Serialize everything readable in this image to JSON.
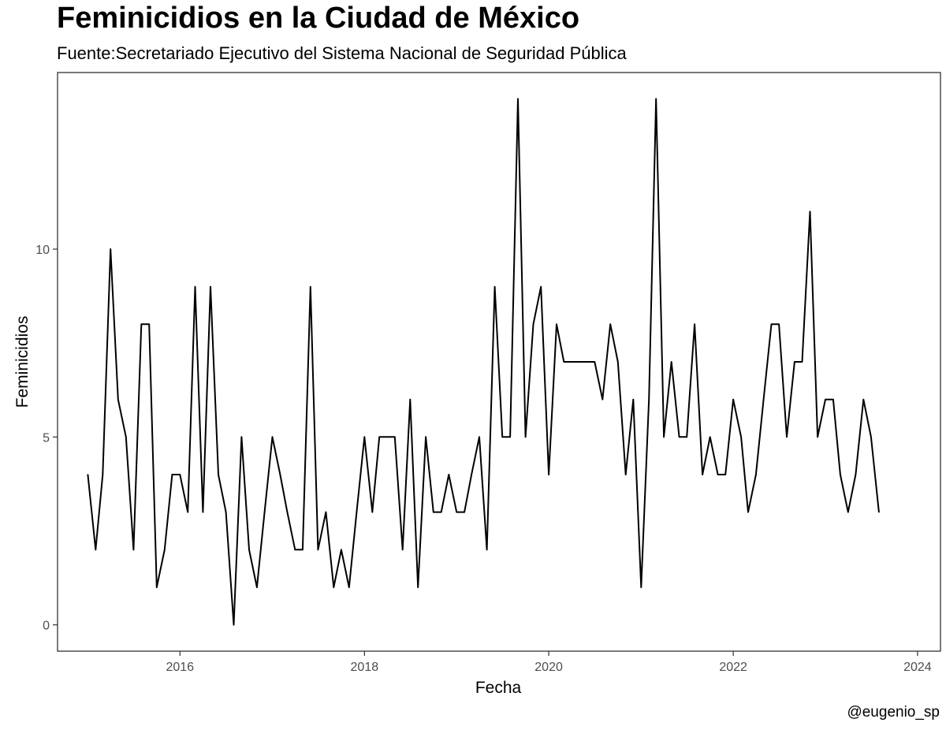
{
  "chart_data": {
    "type": "line",
    "title": "Feminicidios en la Ciudad de México",
    "subtitle": "Fuente:Secretariado Ejecutivo del Sistema Nacional de Seguridad Pública",
    "caption": "@eugenio_sp",
    "xlabel": "Fecha",
    "ylabel": "Feminicidios",
    "x_axis_type": "date",
    "xlim": [
      "2014-09-03",
      "2024-04-01"
    ],
    "ylim": [
      -0.7,
      14.7
    ],
    "x_ticks": [
      {
        "date": "2016-01-01",
        "label": "2016"
      },
      {
        "date": "2018-01-01",
        "label": "2018"
      },
      {
        "date": "2020-01-01",
        "label": "2020"
      },
      {
        "date": "2022-01-01",
        "label": "2022"
      },
      {
        "date": "2024-01-01",
        "label": "2024"
      }
    ],
    "y_ticks": [
      {
        "value": 0,
        "label": "0"
      },
      {
        "value": 5,
        "label": "5"
      },
      {
        "value": 10,
        "label": "10"
      }
    ],
    "grid": false,
    "line_color": "#000000",
    "series": [
      {
        "x": [
          "2015-01",
          "2015-02",
          "2015-03",
          "2015-04",
          "2015-05",
          "2015-06",
          "2015-07",
          "2015-08",
          "2015-09",
          "2015-10",
          "2015-11",
          "2015-12",
          "2016-01",
          "2016-02",
          "2016-03",
          "2016-04",
          "2016-05",
          "2016-06",
          "2016-07",
          "2016-08",
          "2016-09",
          "2016-10",
          "2016-11",
          "2016-12",
          "2017-01",
          "2017-02",
          "2017-03",
          "2017-04",
          "2017-05",
          "2017-06",
          "2017-07",
          "2017-08",
          "2017-09",
          "2017-10",
          "2017-11",
          "2017-12",
          "2018-01",
          "2018-02",
          "2018-03",
          "2018-04",
          "2018-05",
          "2018-06",
          "2018-07",
          "2018-08",
          "2018-09",
          "2018-10",
          "2018-11",
          "2018-12",
          "2019-01",
          "2019-02",
          "2019-03",
          "2019-04",
          "2019-05",
          "2019-06",
          "2019-07",
          "2019-08",
          "2019-09",
          "2019-10",
          "2019-11",
          "2019-12",
          "2020-01",
          "2020-02",
          "2020-03",
          "2020-04",
          "2020-05",
          "2020-06",
          "2020-07",
          "2020-08",
          "2020-09",
          "2020-10",
          "2020-11",
          "2020-12",
          "2021-01",
          "2021-02",
          "2021-03",
          "2021-04",
          "2021-05",
          "2021-06",
          "2021-07",
          "2021-08",
          "2021-09",
          "2021-10",
          "2021-11",
          "2021-12",
          "2022-01",
          "2022-02",
          "2022-03",
          "2022-04",
          "2022-05",
          "2022-06",
          "2022-07",
          "2022-08",
          "2022-09",
          "2022-10",
          "2022-11",
          "2022-12",
          "2023-01",
          "2023-02",
          "2023-03",
          "2023-04",
          "2023-05",
          "2023-06",
          "2023-07",
          "2023-08"
        ],
        "values": [
          4,
          2,
          4,
          10,
          6,
          5,
          2,
          8,
          8,
          1,
          2,
          4,
          4,
          3,
          9,
          3,
          9,
          4,
          3,
          0,
          5,
          2,
          1,
          3,
          5,
          4,
          3,
          2,
          2,
          9,
          2,
          3,
          1,
          2,
          1,
          3,
          5,
          3,
          5,
          5,
          5,
          2,
          6,
          1,
          5,
          3,
          3,
          4,
          3,
          3,
          4,
          5,
          2,
          9,
          5,
          5,
          14,
          5,
          8,
          9,
          4,
          8,
          7,
          7,
          7,
          7,
          7,
          6,
          8,
          7,
          4,
          6,
          1,
          6,
          14,
          5,
          7,
          5,
          5,
          8,
          4,
          5,
          4,
          4,
          6,
          5,
          3,
          4,
          6,
          8,
          8,
          5,
          7,
          7,
          11,
          5,
          6,
          6,
          4,
          3,
          4,
          6,
          5,
          3
        ]
      }
    ]
  }
}
